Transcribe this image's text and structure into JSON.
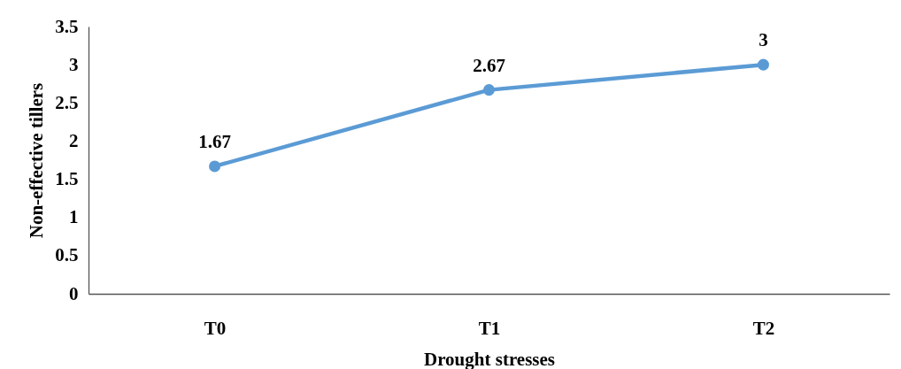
{
  "chart_data": {
    "type": "line",
    "xlabel": "Drought stresses",
    "ylabel": "Non-effective tillers",
    "categories": [
      "T0",
      "T1",
      "T2"
    ],
    "series": [
      {
        "color": "#5b9bd5",
        "values": [
          1.67,
          2.67,
          3
        ]
      }
    ],
    "ylim": [
      0,
      3.5
    ],
    "yticks": [
      0,
      0.5,
      1,
      1.5,
      2,
      2.5,
      3,
      3.5
    ],
    "marker": "circle",
    "line_style": "solid",
    "data_labels": true
  }
}
